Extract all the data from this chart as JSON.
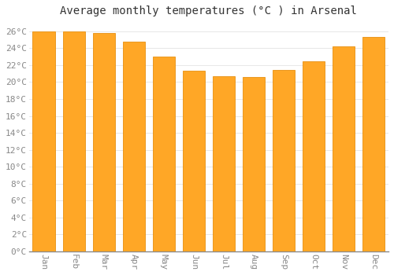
{
  "title": "Average monthly temperatures (°C ) in Arsenal",
  "months": [
    "Jan",
    "Feb",
    "Mar",
    "Apr",
    "May",
    "Jun",
    "Jul",
    "Aug",
    "Sep",
    "Oct",
    "Nov",
    "Dec"
  ],
  "values": [
    26.0,
    26.0,
    25.8,
    24.8,
    23.0,
    21.3,
    20.7,
    20.6,
    21.4,
    22.5,
    24.2,
    25.3
  ],
  "bar_color": "#FFA726",
  "bar_edge_color": "#E69010",
  "background_color": "#FFFFFF",
  "plot_bg_color": "#FFFFFF",
  "grid_color": "#DDDDDD",
  "ylim": [
    0,
    27
  ],
  "yticks": [
    0,
    2,
    4,
    6,
    8,
    10,
    12,
    14,
    16,
    18,
    20,
    22,
    24,
    26
  ],
  "title_fontsize": 10,
  "tick_fontsize": 8,
  "title_color": "#333333",
  "tick_color": "#888888",
  "font_family": "monospace"
}
